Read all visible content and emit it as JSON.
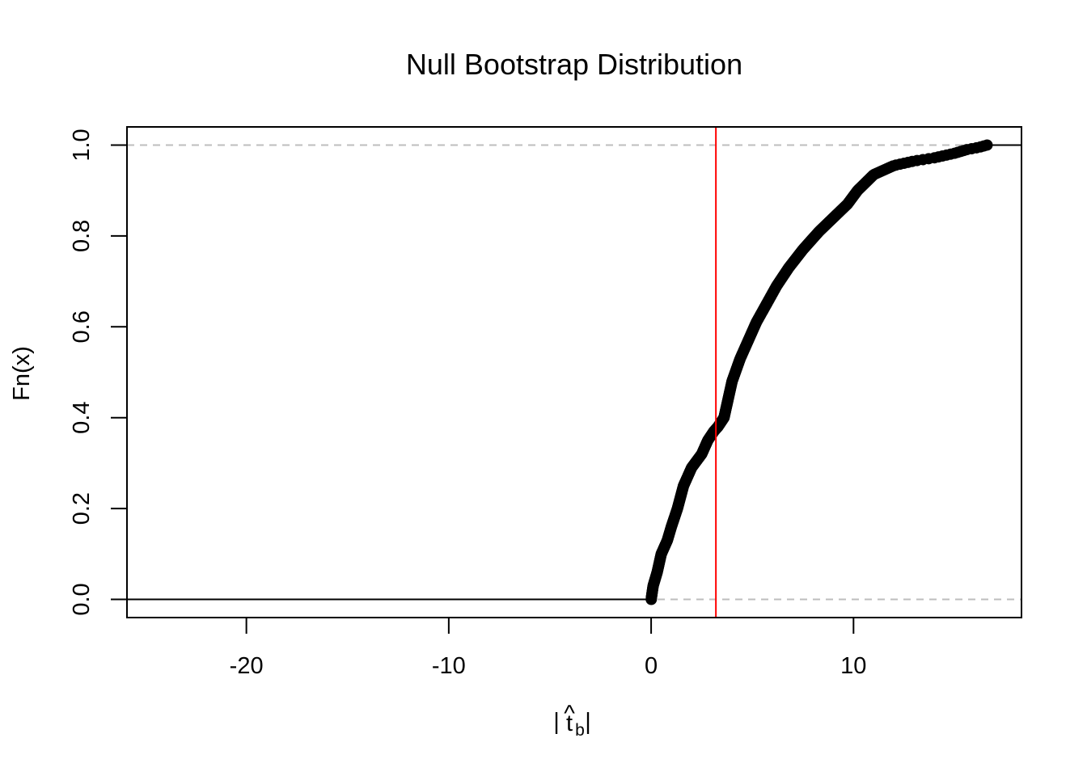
{
  "chart_data": {
    "type": "scatter",
    "subtype": "ecdf",
    "title": "Null Bootstrap Distribution",
    "xlabel": {
      "bar_left": "|",
      "symbol": "t",
      "hat": "^",
      "subscript": "b",
      "bar_right": "|"
    },
    "ylabel": "Fn(x)",
    "xlim": [
      -25.9,
      18.3
    ],
    "ylim": [
      -0.04,
      1.04
    ],
    "x_ticks": [
      -20,
      -10,
      0,
      10
    ],
    "x_tick_labels": [
      "-20",
      "-10",
      "0",
      "10"
    ],
    "y_ticks": [
      0,
      0.2,
      0.4,
      0.6,
      0.8,
      1.0
    ],
    "y_tick_labels": [
      "0.0",
      "0.2",
      "0.4",
      "0.6",
      "0.8",
      "1.0"
    ],
    "reference_lines": {
      "horizontal": [
        0,
        1
      ],
      "style": "dashed",
      "color": "#bebebe"
    },
    "vline": {
      "x": 3.2,
      "color": "#ff0000"
    },
    "n_points": 500,
    "curve_anchors": {
      "x": [
        0.0,
        0.1,
        0.3,
        0.5,
        0.8,
        1.0,
        1.3,
        1.6,
        1.8,
        2.0,
        2.5,
        2.8,
        3.1,
        3.3,
        3.6,
        3.8,
        4.0,
        4.4,
        4.8,
        5.2,
        5.7,
        6.2,
        6.8,
        7.5,
        8.3,
        9.0,
        9.7,
        10.2,
        11.0,
        12.0,
        13.0,
        14.0,
        15.0,
        15.6,
        16.2,
        16.6
      ],
      "y": [
        0.0,
        0.03,
        0.06,
        0.1,
        0.13,
        0.16,
        0.2,
        0.25,
        0.27,
        0.29,
        0.32,
        0.35,
        0.37,
        0.38,
        0.4,
        0.44,
        0.48,
        0.53,
        0.57,
        0.61,
        0.65,
        0.69,
        0.73,
        0.77,
        0.81,
        0.84,
        0.87,
        0.9,
        0.935,
        0.955,
        0.965,
        0.972,
        0.982,
        0.99,
        0.995,
        1.0
      ]
    },
    "series": [
      {
        "color": "#000000",
        "marker": "filled-circle"
      }
    ],
    "colors": {
      "axis": "#000000",
      "points": "#000000",
      "vline": "#ff0000",
      "reference": "#bebebe"
    }
  }
}
